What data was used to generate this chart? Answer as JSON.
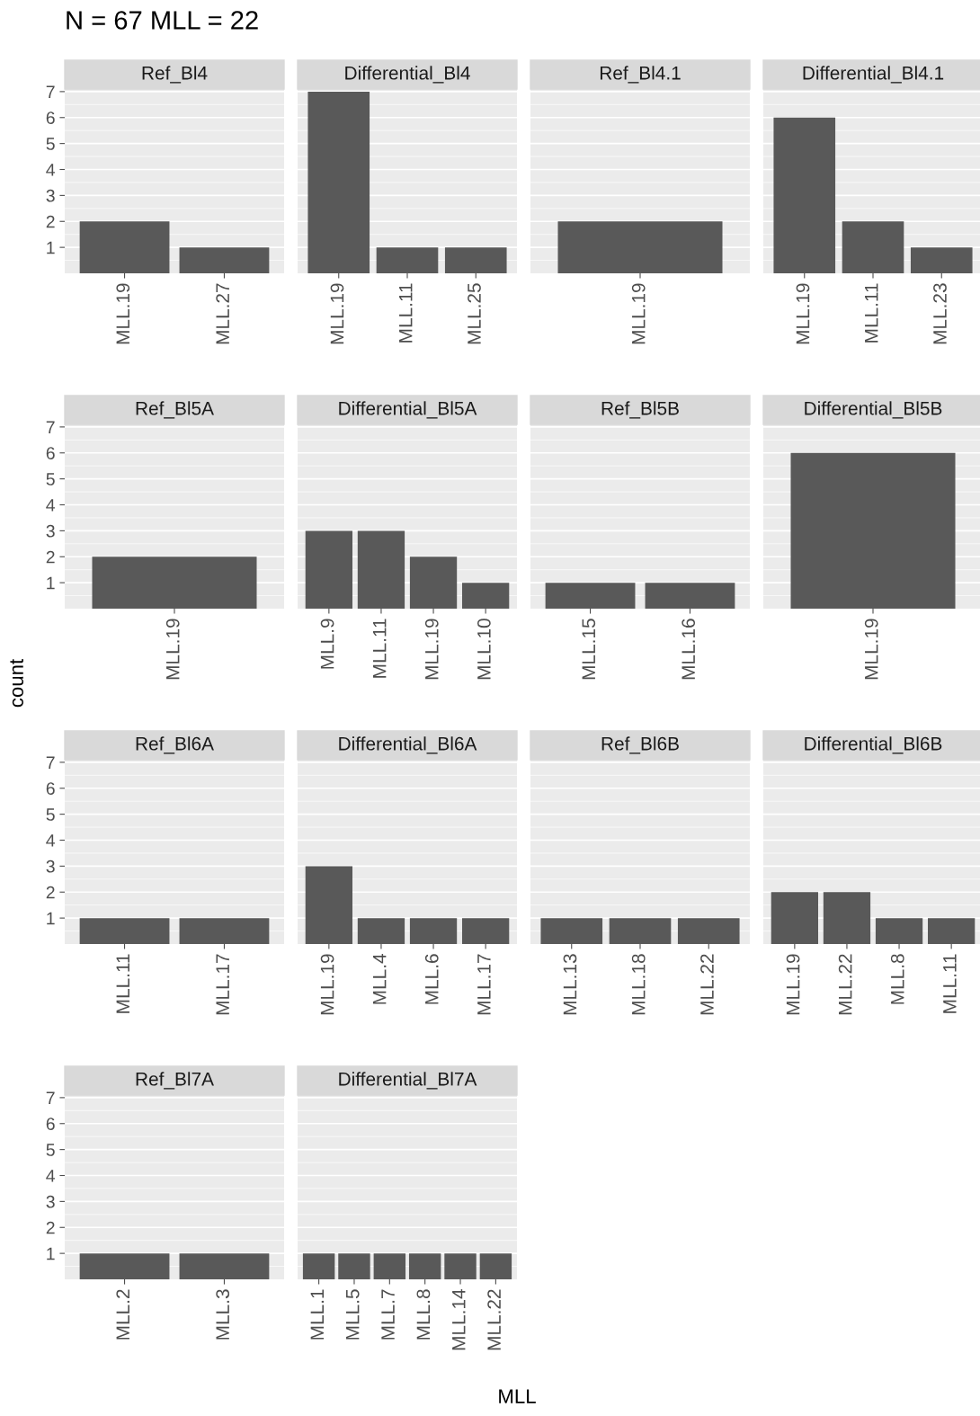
{
  "chart_data": [
    {
      "type": "bar",
      "title": "Ref_Bl4",
      "annotations": [
        "N = 67 MLL = 22"
      ],
      "categories": [
        "MLL.19",
        "MLL.27"
      ],
      "values": [
        2,
        1
      ],
      "color": "#595959",
      "ylim": [
        0,
        7.1
      ],
      "yticks": [
        1,
        2,
        3,
        4,
        5,
        6,
        7
      ],
      "grid": true
    },
    {
      "type": "bar",
      "title": "Differential_Bl4",
      "categories": [
        "MLL.19",
        "MLL.11",
        "MLL.25"
      ],
      "values": [
        7,
        1,
        1
      ],
      "color": "#595959",
      "ylim": [
        0,
        7.1
      ],
      "yticks": [
        1,
        2,
        3,
        4,
        5,
        6,
        7
      ],
      "grid": true,
      "tick_labels": "x"
    },
    {
      "type": "bar",
      "title": "Ref_Bl4.1",
      "categories": [
        "MLL.19"
      ],
      "values": [
        2
      ],
      "color": "#595959",
      "ylim": [
        0,
        7.1
      ],
      "yticks": [
        1,
        2,
        3,
        4,
        5,
        6,
        7
      ],
      "grid": true,
      "tick_labels": "x"
    },
    {
      "type": "bar",
      "title": "Differential_Bl4.1",
      "categories": [
        "MLL.19",
        "MLL.11",
        "MLL.23"
      ],
      "values": [
        6,
        2,
        1
      ],
      "color": "#595959",
      "ylim": [
        0,
        7.1
      ],
      "yticks": [
        1,
        2,
        3,
        4,
        5,
        6,
        7
      ],
      "grid": true,
      "tick_labels": "x"
    },
    {
      "type": "bar",
      "title": "Ref_Bl5A",
      "ylabel": "count",
      "categories": [
        "MLL.19"
      ],
      "values": [
        2
      ],
      "color": "#595959",
      "ylim": [
        0,
        7.1
      ],
      "yticks": [
        1,
        2,
        3,
        4,
        5,
        6,
        7
      ],
      "grid": true
    },
    {
      "type": "bar",
      "title": "Differential_Bl5A",
      "categories": [
        "MLL.9",
        "MLL.11",
        "MLL.19",
        "MLL.10"
      ],
      "values": [
        3,
        3,
        2,
        1
      ],
      "color": "#595959",
      "ylim": [
        0,
        7.1
      ],
      "yticks": [
        1,
        2,
        3,
        4,
        5,
        6,
        7
      ],
      "grid": true,
      "tick_labels": "x"
    },
    {
      "type": "bar",
      "title": "Ref_Bl5B",
      "categories": [
        "MLL.15",
        "MLL.16"
      ],
      "values": [
        1,
        1
      ],
      "color": "#595959",
      "ylim": [
        0,
        7.1
      ],
      "yticks": [
        1,
        2,
        3,
        4,
        5,
        6,
        7
      ],
      "grid": true,
      "tick_labels": "x"
    },
    {
      "type": "bar",
      "title": "Differential_Bl5B",
      "categories": [
        "MLL.19"
      ],
      "values": [
        6
      ],
      "color": "#595959",
      "ylim": [
        0,
        7.1
      ],
      "yticks": [
        1,
        2,
        3,
        4,
        5,
        6,
        7
      ],
      "grid": true,
      "tick_labels": "x"
    },
    {
      "type": "bar",
      "title": "Ref_Bl6A",
      "categories": [
        "MLL.11",
        "MLL.17"
      ],
      "values": [
        1,
        1
      ],
      "color": "#595959",
      "ylim": [
        0,
        7.1
      ],
      "yticks": [
        1,
        2,
        3,
        4,
        5,
        6,
        7
      ],
      "grid": true
    },
    {
      "type": "bar",
      "title": "Differential_Bl6A",
      "categories": [
        "MLL.19",
        "MLL.4",
        "MLL.6",
        "MLL.17"
      ],
      "values": [
        3,
        1,
        1,
        1
      ],
      "color": "#595959",
      "ylim": [
        0,
        7.1
      ],
      "yticks": [
        1,
        2,
        3,
        4,
        5,
        6,
        7
      ],
      "grid": true,
      "tick_labels": "x"
    },
    {
      "type": "bar",
      "title": "Ref_Bl6B",
      "categories": [
        "MLL.13",
        "MLL.18",
        "MLL.22"
      ],
      "values": [
        1,
        1,
        1
      ],
      "color": "#595959",
      "ylim": [
        0,
        7.1
      ],
      "yticks": [
        1,
        2,
        3,
        4,
        5,
        6,
        7
      ],
      "grid": true,
      "tick_labels": "x"
    },
    {
      "type": "bar",
      "title": "Differential_Bl6B",
      "categories": [
        "MLL.19",
        "MLL.22",
        "MLL.8",
        "MLL.11"
      ],
      "values": [
        2,
        2,
        1,
        1
      ],
      "color": "#595959",
      "ylim": [
        0,
        7.1
      ],
      "yticks": [
        1,
        2,
        3,
        4,
        5,
        6,
        7
      ],
      "grid": true,
      "tick_labels": "x"
    },
    {
      "type": "bar",
      "title": "Ref_Bl7A",
      "categories": [
        "MLL.2",
        "MLL.3"
      ],
      "values": [
        1,
        1
      ],
      "color": "#595959",
      "ylim": [
        0,
        7.1
      ],
      "yticks": [
        1,
        2,
        3,
        4,
        5,
        6,
        7
      ],
      "grid": true
    },
    {
      "type": "bar",
      "title": "Differential_Bl7A",
      "xlabel": "MLL",
      "categories": [
        "MLL.1",
        "MLL.5",
        "MLL.7",
        "MLL.8",
        "MLL.14",
        "MLL.22"
      ],
      "values": [
        1,
        1,
        1,
        1,
        1,
        1
      ],
      "color": "#595959",
      "ylim": [
        0,
        7.1
      ],
      "yticks": [
        1,
        2,
        3,
        4,
        5,
        6,
        7
      ],
      "grid": true,
      "tick_labels": "x"
    }
  ]
}
